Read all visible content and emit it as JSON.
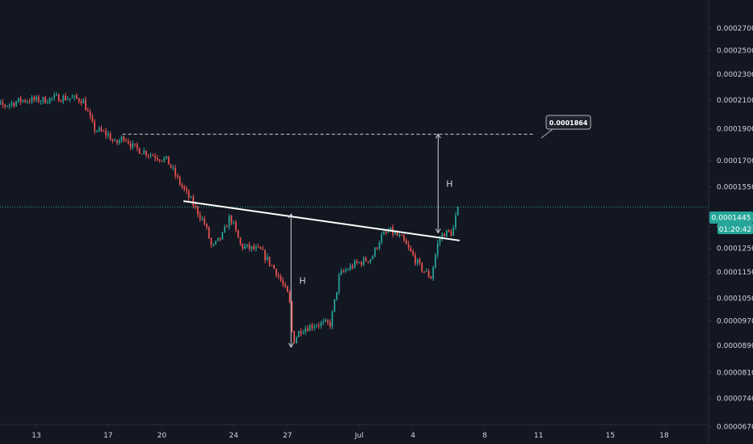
{
  "colors": {
    "background": "#131722",
    "up": "#26a69a",
    "down": "#ef5350",
    "text": "#d1d4dc",
    "axis_border": "#2a2e39",
    "trendline": "#ffffff",
    "price_line": "#26a69a"
  },
  "chart_data": {
    "type": "candlestick",
    "title": "",
    "xlabel": "",
    "ylabel": "",
    "ylim": [
      6e-05,
      0.00028
    ],
    "y_scale": "log",
    "grid": false,
    "x_tick_labels": [
      {
        "label": "13",
        "day": 13
      },
      {
        "label": "17",
        "day": 17
      },
      {
        "label": "20",
        "day": 20
      },
      {
        "label": "24",
        "day": 24
      },
      {
        "label": "27",
        "day": 27
      },
      {
        "label": "Jul",
        "day": 31
      },
      {
        "label": "4",
        "day": 34
      },
      {
        "label": "8",
        "day": 38
      },
      {
        "label": "11",
        "day": 41
      },
      {
        "label": "15",
        "day": 45
      },
      {
        "label": "18",
        "day": 48
      }
    ],
    "y_tick_labels": [
      {
        "label": "0.0002700",
        "value": 0.00027
      },
      {
        "label": "0.0002500",
        "value": 0.00025
      },
      {
        "label": "0.0002300",
        "value": 0.00023
      },
      {
        "label": "0.0002100",
        "value": 0.00021
      },
      {
        "label": "0.0001900",
        "value": 0.00019
      },
      {
        "label": "0.0001700",
        "value": 0.00017
      },
      {
        "label": "0.0001550",
        "value": 0.000155
      },
      {
        "label": "0.0001350",
        "value": 0.000135
      },
      {
        "label": "0.0001250",
        "value": 0.000125
      },
      {
        "label": "0.0001150",
        "value": 0.000115
      },
      {
        "label": "0.0001050",
        "value": 0.000105
      },
      {
        "label": "0.0000970",
        "value": 9.7e-05
      },
      {
        "label": "0.0000890",
        "value": 8.9e-05
      },
      {
        "label": "0.0000810",
        "value": 8.1e-05
      },
      {
        "label": "0.0000740",
        "value": 7.4e-05
      },
      {
        "label": "0.0000670",
        "value": 6.7e-05
      }
    ],
    "current_price": {
      "label": "0.0001445",
      "value": 0.0001445,
      "countdown": "01:20:42"
    },
    "target": {
      "label": "0.0001864",
      "value": 0.0001864,
      "start_day": 17.8,
      "end_day": 40.7
    },
    "neckline": {
      "start": {
        "day": 21.2,
        "value": 0.0001475
      },
      "end": {
        "day": 36.6,
        "value": 0.0001285
      }
    },
    "measures": [
      {
        "label": "H",
        "day": 27.2,
        "from": 8.85e-05,
        "to": 0.000141
      },
      {
        "label": "H",
        "day": 35.4,
        "from": 0.000132,
        "to": 0.0001864
      }
    ],
    "candle_anchors": [
      [
        10.0,
        0.000207
      ],
      [
        11.2,
        0.000206
      ],
      [
        12.2,
        0.00021
      ],
      [
        13.4,
        0.00021
      ],
      [
        14.2,
        0.000212
      ],
      [
        15.2,
        0.000211
      ],
      [
        15.6,
        0.00021
      ],
      [
        16.2,
        0.00019
      ],
      [
        17.0,
        0.000186
      ],
      [
        17.4,
        0.00018
      ],
      [
        17.9,
        0.000185
      ],
      [
        18.4,
        0.000178
      ],
      [
        19.3,
        0.000174
      ],
      [
        20.3,
        0.00017
      ],
      [
        21.0,
        0.000157
      ],
      [
        21.6,
        0.000148
      ],
      [
        22.4,
        0.000136
      ],
      [
        22.8,
        0.000125
      ],
      [
        23.4,
        0.000131
      ],
      [
        23.8,
        0.00014
      ],
      [
        24.4,
        0.000126
      ],
      [
        25.5,
        0.000124
      ],
      [
        26.4,
        0.000115
      ],
      [
        27.1,
        0.000105
      ],
      [
        27.3,
        9e-05
      ],
      [
        27.7,
        9.4e-05
      ],
      [
        28.6,
        9.6e-05
      ],
      [
        29.4,
        9.6e-05
      ],
      [
        29.9,
        0.000114
      ],
      [
        30.7,
        0.000118
      ],
      [
        31.7,
        0.000121
      ],
      [
        32.2,
        0.00013
      ],
      [
        32.7,
        0.000133
      ],
      [
        33.4,
        0.000129
      ],
      [
        34.4,
        0.000117
      ],
      [
        35.0,
        0.000113
      ],
      [
        35.4,
        0.000128
      ],
      [
        35.7,
        0.000132
      ],
      [
        36.2,
        0.000132
      ],
      [
        36.5,
        0.0001445
      ]
    ]
  }
}
